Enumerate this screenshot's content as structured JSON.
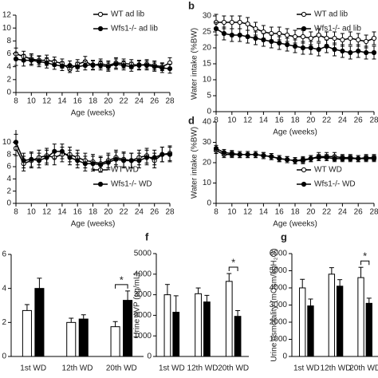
{
  "chart_data": [
    {
      "type": "line",
      "xlabel": "Age (weeks)",
      "x": [
        8,
        9,
        10,
        11,
        12,
        13,
        14,
        15,
        16,
        17,
        18,
        19,
        20,
        21,
        22,
        23,
        24,
        25,
        26,
        27,
        28
      ],
      "xlim": [
        8,
        28
      ],
      "xticks": [
        8,
        10,
        12,
        14,
        16,
        18,
        20,
        22,
        24,
        26,
        28
      ],
      "ylim": [
        0,
        12
      ],
      "yticks": [
        0,
        2,
        4,
        6,
        8,
        10,
        12
      ],
      "series": [
        {
          "name": "WT ad lib",
          "color": "#ffffff",
          "values": [
            6.0,
            5.6,
            5.2,
            5.0,
            5.0,
            4.8,
            4.5,
            3.6,
            4.4,
            4.8,
            4.2,
            4.5,
            4.2,
            4.6,
            4.5,
            4.4,
            4.2,
            4.4,
            4.2,
            4.0,
            4.6
          ],
          "errors": [
            0.9,
            0.8,
            0.8,
            0.7,
            0.8,
            0.7,
            0.7,
            0.5,
            0.7,
            0.8,
            0.7,
            0.7,
            0.7,
            0.8,
            0.7,
            0.7,
            0.7,
            0.7,
            0.7,
            0.6,
            0.8
          ]
        },
        {
          "name": "Wfs1-/- ad lib",
          "color": "#000000",
          "values": [
            5.2,
            5.0,
            5.0,
            4.8,
            4.6,
            4.3,
            4.1,
            4.2,
            4.0,
            4.2,
            4.3,
            4.2,
            4.0,
            4.4,
            4.2,
            4.0,
            4.3,
            4.2,
            4.0,
            3.8,
            3.7
          ],
          "errors": [
            1.0,
            0.9,
            0.8,
            0.8,
            0.8,
            0.7,
            0.7,
            0.7,
            0.7,
            0.7,
            0.7,
            0.7,
            0.7,
            0.8,
            0.7,
            0.7,
            0.7,
            0.7,
            0.7,
            0.7,
            0.7
          ]
        }
      ]
    },
    {
      "type": "line",
      "panel_label": "b",
      "xlabel": "Age (weeks)",
      "ylabel": "Water intake (%BW)",
      "x": [
        8,
        9,
        10,
        11,
        12,
        13,
        14,
        15,
        16,
        17,
        18,
        19,
        20,
        21,
        22,
        23,
        24,
        25,
        26,
        27,
        28
      ],
      "xlim": [
        8,
        28
      ],
      "xticks": [
        8,
        10,
        12,
        14,
        16,
        18,
        20,
        22,
        24,
        26,
        28
      ],
      "ylim": [
        0,
        30
      ],
      "yticks": [
        0,
        5,
        10,
        15,
        20,
        25,
        30
      ],
      "series": [
        {
          "name": "WT ad lib",
          "color": "#ffffff",
          "values": [
            28,
            28,
            28,
            28,
            27.5,
            26,
            25,
            24.5,
            24.5,
            24,
            23.5,
            23.5,
            23,
            24,
            23,
            23,
            22.5,
            23,
            22.5,
            22,
            23
          ],
          "errors": [
            2.5,
            2,
            2,
            2,
            2,
            2,
            2,
            2,
            2,
            2,
            2,
            2,
            2,
            2,
            2,
            2,
            2,
            2,
            2,
            2,
            2
          ]
        },
        {
          "name": "Wfs1-/- ad lib",
          "color": "#000000",
          "values": [
            26,
            24.5,
            24,
            24,
            23.5,
            23,
            22.5,
            22,
            21.5,
            21,
            20.5,
            20,
            20,
            19.5,
            20.5,
            19.5,
            19,
            18.5,
            19,
            18.5,
            18.5
          ],
          "errors": [
            2,
            2,
            2,
            2,
            2,
            2,
            2,
            2,
            2,
            2,
            2,
            2,
            2,
            2,
            2,
            2,
            2,
            2,
            2,
            2,
            2
          ]
        }
      ]
    },
    {
      "type": "line",
      "xlabel": "Age (weeks)",
      "x": [
        8,
        9,
        10,
        11,
        12,
        13,
        14,
        15,
        16,
        17,
        18,
        19,
        20,
        21,
        22,
        23,
        24,
        25,
        26,
        27,
        28
      ],
      "xlim": [
        8,
        28
      ],
      "xticks": [
        8,
        10,
        12,
        14,
        16,
        18,
        20,
        22,
        24,
        26,
        28
      ],
      "ylim": [
        0,
        12
      ],
      "yticks": [
        0,
        2,
        4,
        6,
        8,
        10
      ],
      "series": [
        {
          "name": "WT WD",
          "color": "#ffffff",
          "values": [
            9.0,
            6.5,
            7.0,
            7.5,
            7.8,
            7.5,
            8.0,
            8.0,
            7.5,
            7.0,
            6.8,
            6.5,
            7.0,
            7.5,
            7.2,
            7.0,
            7.5,
            7.8,
            7.0,
            8.0,
            8.2
          ],
          "errors": [
            1.2,
            1.2,
            1.2,
            1.2,
            1.2,
            1.2,
            1.2,
            1.2,
            1.2,
            1.2,
            1.2,
            1.2,
            1.2,
            1.2,
            1.2,
            1.2,
            1.2,
            1.2,
            1.2,
            1.2,
            1.2
          ]
        },
        {
          "name": "Wfs1-/- WD",
          "color": "#000000",
          "values": [
            10.0,
            7.0,
            7.2,
            7.0,
            7.5,
            8.5,
            8.5,
            7.5,
            7.0,
            6.5,
            6.5,
            6.3,
            6.7,
            7.2,
            7.0,
            7.0,
            7.0,
            7.5,
            7.5,
            8.0,
            8.0
          ],
          "errors": [
            1.3,
            1.2,
            1.2,
            1.2,
            1.2,
            1.2,
            1.2,
            1.2,
            1.2,
            1.2,
            1.2,
            1.2,
            1.2,
            1.2,
            1.2,
            1.2,
            1.2,
            1.2,
            1.2,
            1.2,
            1.2
          ]
        }
      ]
    },
    {
      "type": "line",
      "panel_label": "d",
      "xlabel": "Age (weeks)",
      "ylabel": "Water intake (%BW)",
      "x": [
        8,
        9,
        10,
        11,
        12,
        13,
        14,
        15,
        16,
        17,
        18,
        19,
        20,
        21,
        22,
        23,
        24,
        25,
        26,
        27,
        28
      ],
      "xlim": [
        8,
        28
      ],
      "xticks": [
        8,
        10,
        12,
        14,
        16,
        18,
        20,
        22,
        24,
        26,
        28
      ],
      "ylim": [
        0,
        40
      ],
      "yticks": [
        0,
        10,
        20,
        30,
        40
      ],
      "series": [
        {
          "name": "WT WD",
          "color": "#ffffff",
          "values": [
            26,
            24,
            24,
            24,
            24,
            24,
            23.5,
            23,
            22,
            21.5,
            21,
            21,
            22,
            23,
            23,
            23,
            22.5,
            22.5,
            22,
            22.5,
            22.5
          ],
          "errors": [
            1.5,
            1.5,
            1.5,
            1.5,
            1.5,
            1.5,
            1.5,
            1.5,
            1.5,
            1.5,
            1.5,
            1.5,
            1.5,
            2,
            2,
            2,
            1.5,
            1.5,
            1.5,
            1.5,
            1.5
          ]
        },
        {
          "name": "Wfs1-/- WD",
          "color": "#000000",
          "values": [
            27,
            25,
            24.5,
            24,
            24,
            24,
            23.5,
            23,
            22,
            21.5,
            21,
            21.5,
            22,
            22.5,
            22.5,
            22,
            22,
            22,
            22,
            22,
            22
          ],
          "errors": [
            1.5,
            1.5,
            1.5,
            1.5,
            1.5,
            1.5,
            1.5,
            1.5,
            1.5,
            1.5,
            1.5,
            1.5,
            1.5,
            1.5,
            1.5,
            1.5,
            1.5,
            1.5,
            1.5,
            1.5,
            1.5
          ]
        }
      ]
    },
    {
      "type": "bar",
      "categories": [
        "1st WD",
        "12th WD",
        "20th WD"
      ],
      "ylim": [
        0,
        6
      ],
      "yticks": [
        0,
        2,
        4,
        6
      ],
      "series": [
        {
          "color": "#ffffff",
          "values": [
            2.7,
            2.0,
            1.75
          ],
          "errors": [
            0.35,
            0.25,
            0.3
          ]
        },
        {
          "color": "#000000",
          "values": [
            4.0,
            2.2,
            3.3
          ],
          "errors": [
            0.6,
            0.25,
            0.55
          ]
        }
      ],
      "annotations": [
        {
          "label": "*",
          "category": "20th WD"
        }
      ]
    },
    {
      "type": "bar",
      "panel_label": "f",
      "ylabel": "Urine AVP (pg/mL)",
      "categories": [
        "1st WD",
        "12th WD",
        "20th WD"
      ],
      "ylim": [
        0,
        5000
      ],
      "yticks": [
        0,
        1000,
        2000,
        3000,
        4000,
        5000
      ],
      "series": [
        {
          "color": "#ffffff",
          "values": [
            3000,
            3050,
            3650
          ],
          "errors": [
            500,
            280,
            380
          ]
        },
        {
          "color": "#000000",
          "values": [
            2150,
            2650,
            1950
          ],
          "errors": [
            800,
            320,
            280
          ]
        }
      ],
      "annotations": [
        {
          "label": "*",
          "category": "20th WD"
        }
      ]
    },
    {
      "type": "bar",
      "panel_label": "g",
      "ylabel": "Urine osmolality (mOsm/kgH₂O)",
      "categories": [
        "1st WD",
        "12th WD",
        "20th WD"
      ],
      "ylim": [
        0,
        6000
      ],
      "yticks": [
        0,
        1000,
        2000,
        3000,
        4000,
        5000,
        6000
      ],
      "series": [
        {
          "color": "#ffffff",
          "values": [
            4000,
            4800,
            4600
          ],
          "errors": [
            500,
            380,
            600
          ]
        },
        {
          "color": "#000000",
          "values": [
            2950,
            4100,
            3100
          ],
          "errors": [
            400,
            380,
            300
          ]
        }
      ],
      "annotations": [
        {
          "label": "*",
          "category": "20th WD"
        }
      ]
    }
  ]
}
